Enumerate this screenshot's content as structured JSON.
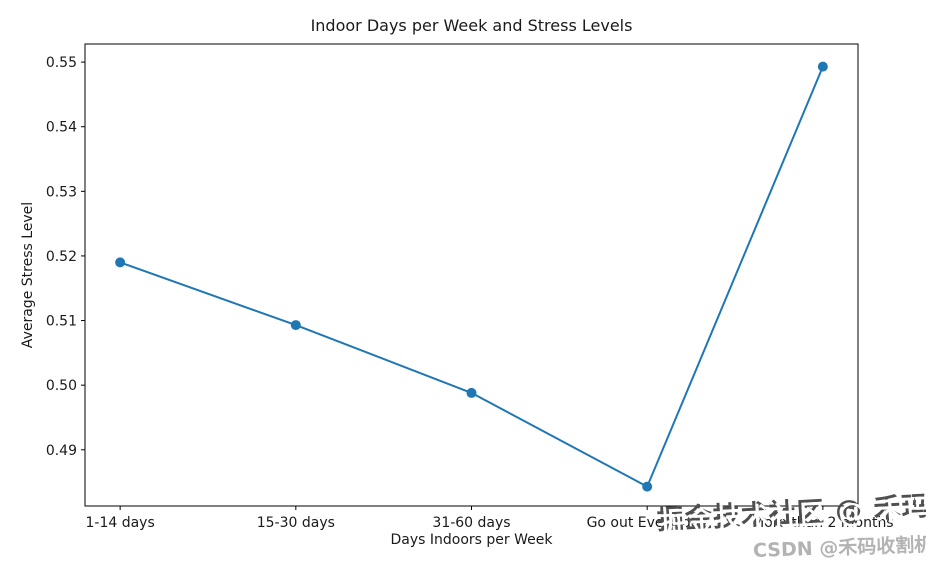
{
  "chart_data": {
    "type": "line",
    "title": "Indoor Days per Week and Stress Levels",
    "xlabel": "Days Indoors per Week",
    "ylabel": "Average Stress Level",
    "categories": [
      "1-14 days",
      "15-30 days",
      "31-60 days",
      "Go out Every day",
      "More than 2 months"
    ],
    "values": [
      0.519,
      0.5093,
      0.4988,
      0.4843,
      0.5493
    ],
    "yticks": [
      0.49,
      0.5,
      0.51,
      0.52,
      0.53,
      0.54,
      0.55
    ],
    "ytick_labels": [
      "0.49",
      "0.50",
      "0.51",
      "0.52",
      "0.53",
      "0.54",
      "0.55"
    ],
    "ylim": [
      0.4813,
      0.5528
    ],
    "xlim": [
      -0.2,
      4.2
    ],
    "line_color": "#1f77b4",
    "marker": "circle",
    "marker_color": "#1f77b4",
    "grid": false,
    "legend": "none",
    "axis_color": "#000000"
  },
  "watermark": {
    "primary": "掘金技术社区 @ 禾玛",
    "secondary": "CSDN @禾码收割机",
    "primary_color": "#ffffff",
    "primary_shadow_color": "#4f4f4f",
    "secondary_color": "#b3b3b3"
  }
}
